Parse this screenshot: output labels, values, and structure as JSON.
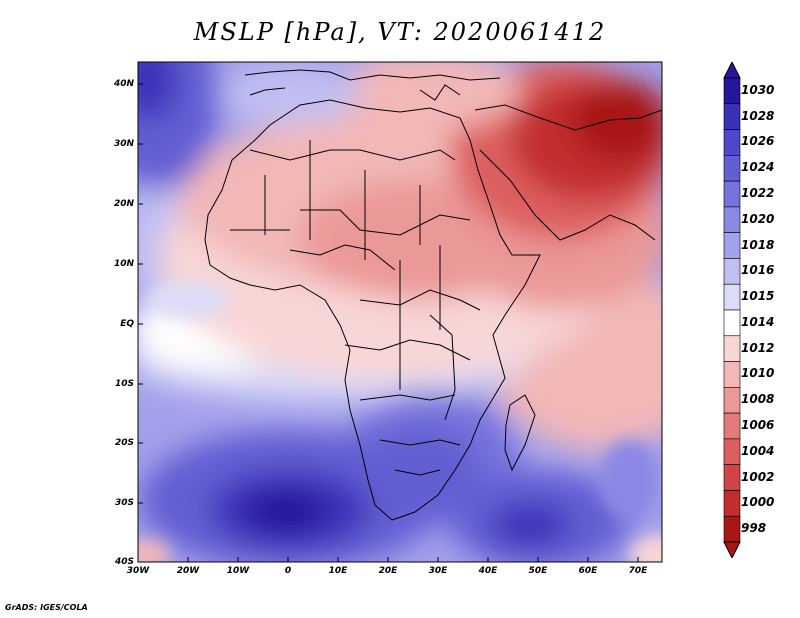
{
  "figure": {
    "title": "MSLP [hPa], VT: 2020061412",
    "footer": "GrADS: IGES/COLA"
  },
  "map": {
    "region": "Africa",
    "field": "Mean sea level pressure",
    "units": "hPa",
    "lon_range": [
      -30,
      75
    ],
    "lat_range": [
      -40,
      45
    ],
    "lon_ticks": [
      "30W",
      "20W",
      "10W",
      "0",
      "10E",
      "20E",
      "30E",
      "40E",
      "50E",
      "60E",
      "70E"
    ],
    "lat_ticks": [
      "40N",
      "30N",
      "20N",
      "10N",
      "EQ",
      "10S",
      "20S",
      "30S",
      "40S"
    ]
  },
  "colorbar": {
    "labels": [
      "1030",
      "1028",
      "1026",
      "1024",
      "1022",
      "1020",
      "1018",
      "1016",
      "1015",
      "1014",
      "1012",
      "1010",
      "1008",
      "1006",
      "1004",
      "1002",
      "1000",
      "998"
    ],
    "colors": [
      "#26179a",
      "#3a31b8",
      "#4e48c9",
      "#625fd3",
      "#7673dd",
      "#8a88e4",
      "#a3a1eb",
      "#c0bff2",
      "#dcdcf7",
      "#ffffff",
      "#f8d6d6",
      "#f2b7b7",
      "#eb9898",
      "#e47a7a",
      "#dd5e5e",
      "#d24444",
      "#c22e2e",
      "#a91616"
    ]
  }
}
